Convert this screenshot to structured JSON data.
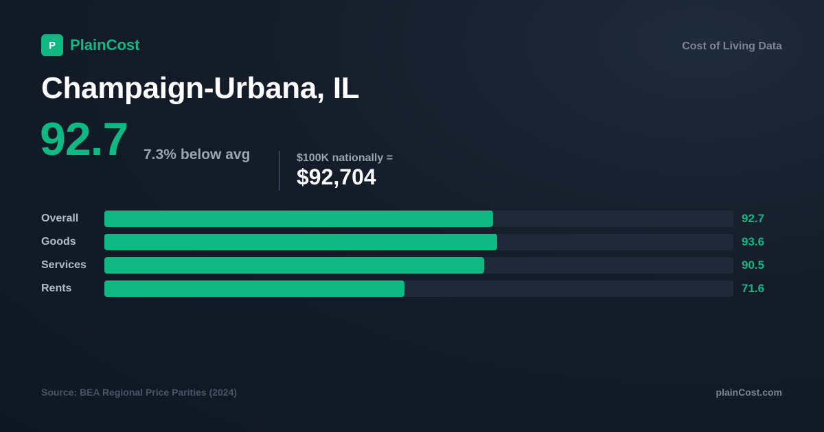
{
  "brand": {
    "mark": "P",
    "name": "PlainCost",
    "tagline": "Cost of Living Data"
  },
  "city": "Champaign-Urbana, IL",
  "index": {
    "value": "92.7",
    "percent_diff": "7.3%",
    "direction_label": "below avg"
  },
  "equivalent": {
    "label": "$100K nationally =",
    "value": "$92,704"
  },
  "chart_data": {
    "type": "bar",
    "orientation": "horizontal",
    "categories": [
      "Overall",
      "Goods",
      "Services",
      "Rents"
    ],
    "values": [
      92.7,
      93.6,
      90.5,
      71.6
    ],
    "value_labels": [
      "92.7",
      "93.6",
      "90.5",
      "71.6"
    ],
    "xlim": [
      0,
      150
    ],
    "grid": false,
    "colors": {
      "fill": "#10b981",
      "track": "#1f293a"
    }
  },
  "footer": {
    "source": "Source: BEA Regional Price Parities (2024)",
    "site": "plainCost.com"
  }
}
